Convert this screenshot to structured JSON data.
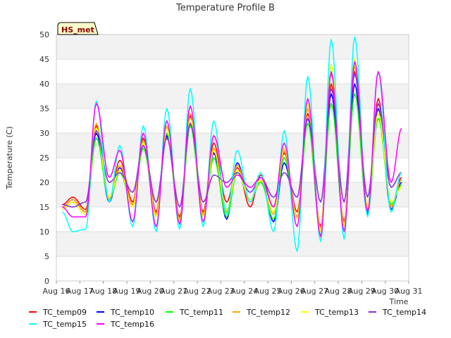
{
  "chart_data": {
    "type": "line",
    "title": "Temperature Profile B",
    "xlabel": "Time",
    "ylabel": "Temperature (C)",
    "badge": "HS_met",
    "ylim": [
      0,
      50
    ],
    "yticks": [
      0,
      5,
      10,
      15,
      20,
      25,
      30,
      35,
      40,
      45,
      50
    ],
    "xlim": [
      "2014-08-16",
      "2014-08-31"
    ],
    "xtick_labels": [
      "Aug 16",
      "Aug 17",
      "Aug 18",
      "Aug 19",
      "Aug 20",
      "Aug 21",
      "Aug 22",
      "Aug 23",
      "Aug 24",
      "Aug 25",
      "Aug 26",
      "Aug 27",
      "Aug 28",
      "Aug 29",
      "Aug 30",
      "Aug 31"
    ],
    "grid": true,
    "legend_position": "bottom",
    "series": [
      {
        "name": "TC_temp09",
        "color": "#ff0000",
        "x": [
          "2014-08-16",
          "2014-08-16",
          "2014-08-17",
          "2014-08-17",
          "2014-08-18",
          "2014-08-18",
          "2014-08-19",
          "2014-08-19",
          "2014-08-20",
          "2014-08-20",
          "2014-08-21",
          "2014-08-21",
          "2014-08-22",
          "2014-08-22",
          "2014-08-23",
          "2014-08-23",
          "2014-08-24",
          "2014-08-24",
          "2014-08-25",
          "2014-08-25",
          "2014-08-26",
          "2014-08-26",
          "2014-08-27",
          "2014-08-27",
          "2014-08-28",
          "2014-08-28",
          "2014-08-29",
          "2014-08-29",
          "2014-08-30",
          "2014-08-30"
        ],
        "y": [
          15.5,
          17.0,
          14.5,
          31.5,
          16.5,
          24.5,
          16.0,
          29.0,
          14.0,
          31.0,
          13.0,
          33.5,
          14.0,
          28.0,
          16.0,
          23.0,
          15.0,
          21.5,
          15.0,
          26.0,
          14.0,
          34.0,
          11.0,
          40.0,
          12.0,
          42.5,
          14.0,
          37.0,
          15.0,
          21.0
        ]
      },
      {
        "name": "TC_temp10",
        "color": "#0000ff",
        "x": [
          "2014-08-16",
          "2014-08-16",
          "2014-08-17",
          "2014-08-17",
          "2014-08-18",
          "2014-08-18",
          "2014-08-19",
          "2014-08-19",
          "2014-08-20",
          "2014-08-20",
          "2014-08-21",
          "2014-08-21",
          "2014-08-22",
          "2014-08-22",
          "2014-08-23",
          "2014-08-23",
          "2014-08-24",
          "2014-08-24",
          "2014-08-25",
          "2014-08-25",
          "2014-08-26",
          "2014-08-26",
          "2014-08-27",
          "2014-08-27",
          "2014-08-28",
          "2014-08-28",
          "2014-08-29",
          "2014-08-29",
          "2014-08-30",
          "2014-08-30"
        ],
        "y": [
          15.0,
          16.5,
          14.0,
          30.0,
          16.0,
          23.0,
          15.5,
          28.0,
          13.5,
          29.5,
          12.5,
          32.0,
          13.5,
          26.0,
          12.5,
          24.0,
          16.0,
          20.5,
          12.0,
          24.0,
          13.0,
          33.0,
          10.0,
          38.0,
          11.0,
          40.0,
          13.5,
          35.0,
          14.5,
          20.0
        ]
      },
      {
        "name": "TC_temp11",
        "color": "#00ff00",
        "x": [
          "2014-08-16",
          "2014-08-16",
          "2014-08-17",
          "2014-08-17",
          "2014-08-18",
          "2014-08-18",
          "2014-08-19",
          "2014-08-19",
          "2014-08-20",
          "2014-08-20",
          "2014-08-21",
          "2014-08-21",
          "2014-08-22",
          "2014-08-22",
          "2014-08-23",
          "2014-08-23",
          "2014-08-24",
          "2014-08-24",
          "2014-08-25",
          "2014-08-25",
          "2014-08-26",
          "2014-08-26",
          "2014-08-27",
          "2014-08-27",
          "2014-08-28",
          "2014-08-28",
          "2014-08-29",
          "2014-08-29",
          "2014-08-30",
          "2014-08-30"
        ],
        "y": [
          14.5,
          16.0,
          13.5,
          29.0,
          16.5,
          22.0,
          15.0,
          27.0,
          13.0,
          30.0,
          12.0,
          31.5,
          13.0,
          25.0,
          13.0,
          22.0,
          16.5,
          20.0,
          12.5,
          25.0,
          12.5,
          32.0,
          10.5,
          36.0,
          11.5,
          38.0,
          14.0,
          33.0,
          15.5,
          19.5
        ]
      },
      {
        "name": "TC_temp12",
        "color": "#ffa500",
        "x": [
          "2014-08-16",
          "2014-08-16",
          "2014-08-17",
          "2014-08-17",
          "2014-08-18",
          "2014-08-18",
          "2014-08-19",
          "2014-08-19",
          "2014-08-20",
          "2014-08-20",
          "2014-08-21",
          "2014-08-21",
          "2014-08-22",
          "2014-08-22",
          "2014-08-23",
          "2014-08-23",
          "2014-08-24",
          "2014-08-24",
          "2014-08-25",
          "2014-08-25",
          "2014-08-26",
          "2014-08-26",
          "2014-08-27",
          "2014-08-27",
          "2014-08-28",
          "2014-08-28",
          "2014-08-29",
          "2014-08-29",
          "2014-08-30",
          "2014-08-30"
        ],
        "y": [
          15.0,
          16.5,
          14.0,
          32.0,
          16.5,
          23.5,
          15.5,
          28.5,
          13.5,
          31.5,
          12.5,
          34.0,
          13.5,
          27.0,
          14.0,
          23.5,
          16.0,
          21.0,
          13.5,
          26.5,
          13.0,
          35.0,
          10.5,
          42.0,
          11.5,
          43.5,
          14.5,
          36.0,
          15.0,
          20.5
        ]
      },
      {
        "name": "TC_temp13",
        "color": "#ffff00",
        "x": [
          "2014-08-16",
          "2014-08-16",
          "2014-08-17",
          "2014-08-17",
          "2014-08-18",
          "2014-08-18",
          "2014-08-19",
          "2014-08-19",
          "2014-08-20",
          "2014-08-20",
          "2014-08-21",
          "2014-08-21",
          "2014-08-22",
          "2014-08-22",
          "2014-08-23",
          "2014-08-23",
          "2014-08-24",
          "2014-08-24",
          "2014-08-25",
          "2014-08-25",
          "2014-08-26",
          "2014-08-26",
          "2014-08-27",
          "2014-08-27",
          "2014-08-28",
          "2014-08-28",
          "2014-08-29",
          "2014-08-29",
          "2014-08-30",
          "2014-08-30"
        ],
        "y": [
          14.5,
          16.0,
          13.5,
          31.0,
          17.0,
          22.5,
          15.0,
          28.0,
          13.0,
          31.0,
          12.0,
          33.0,
          13.0,
          26.5,
          14.5,
          22.5,
          16.5,
          20.5,
          14.0,
          27.0,
          12.5,
          36.0,
          10.0,
          44.0,
          11.0,
          45.0,
          15.0,
          34.0,
          16.0,
          19.0
        ]
      },
      {
        "name": "TC_temp14",
        "color": "#8a2be2",
        "x": [
          "2014-08-16",
          "2014-08-16",
          "2014-08-17",
          "2014-08-17",
          "2014-08-18",
          "2014-08-18",
          "2014-08-19",
          "2014-08-19",
          "2014-08-20",
          "2014-08-20",
          "2014-08-21",
          "2014-08-21",
          "2014-08-22",
          "2014-08-22",
          "2014-08-23",
          "2014-08-23",
          "2014-08-24",
          "2014-08-24",
          "2014-08-25",
          "2014-08-25",
          "2014-08-26",
          "2014-08-26",
          "2014-08-27",
          "2014-08-27",
          "2014-08-28",
          "2014-08-28",
          "2014-08-29",
          "2014-08-29",
          "2014-08-30",
          "2014-08-30"
        ],
        "y": [
          15.5,
          15.0,
          16.0,
          30.5,
          20.0,
          22.0,
          18.0,
          27.5,
          16.0,
          29.0,
          15.0,
          32.0,
          16.0,
          21.5,
          20.0,
          22.0,
          18.0,
          21.0,
          17.0,
          22.0,
          17.0,
          33.0,
          16.0,
          39.0,
          16.0,
          42.0,
          17.0,
          36.0,
          19.0,
          22.0
        ]
      },
      {
        "name": "TC_temp15",
        "color": "#00ffff",
        "x": [
          "2014-08-16",
          "2014-08-16",
          "2014-08-17",
          "2014-08-17",
          "2014-08-18",
          "2014-08-18",
          "2014-08-19",
          "2014-08-19",
          "2014-08-20",
          "2014-08-20",
          "2014-08-21",
          "2014-08-21",
          "2014-08-22",
          "2014-08-22",
          "2014-08-23",
          "2014-08-23",
          "2014-08-24",
          "2014-08-24",
          "2014-08-25",
          "2014-08-25",
          "2014-08-26",
          "2014-08-26",
          "2014-08-27",
          "2014-08-27",
          "2014-08-28",
          "2014-08-28",
          "2014-08-29",
          "2014-08-29",
          "2014-08-30",
          "2014-08-30"
        ],
        "y": [
          14.0,
          10.0,
          10.5,
          36.5,
          16.0,
          27.5,
          11.0,
          31.5,
          10.0,
          35.0,
          10.5,
          39.0,
          11.0,
          32.5,
          13.5,
          26.5,
          16.0,
          22.0,
          10.0,
          30.5,
          6.0,
          41.5,
          8.0,
          49.0,
          8.5,
          49.5,
          13.0,
          42.5,
          14.0,
          22.0
        ]
      },
      {
        "name": "TC_temp16",
        "color": "#ff00ff",
        "x": [
          "2014-08-16",
          "2014-08-16",
          "2014-08-17",
          "2014-08-17",
          "2014-08-18",
          "2014-08-18",
          "2014-08-19",
          "2014-08-19",
          "2014-08-20",
          "2014-08-20",
          "2014-08-21",
          "2014-08-21",
          "2014-08-22",
          "2014-08-22",
          "2014-08-23",
          "2014-08-23",
          "2014-08-24",
          "2014-08-24",
          "2014-08-25",
          "2014-08-25",
          "2014-08-26",
          "2014-08-26",
          "2014-08-27",
          "2014-08-27",
          "2014-08-28",
          "2014-08-28",
          "2014-08-29",
          "2014-08-29",
          "2014-08-30",
          "2014-08-30"
        ],
        "y": [
          15.0,
          13.0,
          13.0,
          36.0,
          21.0,
          26.5,
          12.0,
          30.0,
          11.0,
          32.5,
          11.5,
          35.5,
          12.0,
          29.5,
          19.0,
          21.5,
          19.0,
          21.0,
          15.0,
          28.0,
          11.0,
          37.0,
          9.0,
          42.5,
          10.0,
          44.5,
          14.0,
          42.5,
          20.0,
          31.0
        ]
      }
    ]
  }
}
